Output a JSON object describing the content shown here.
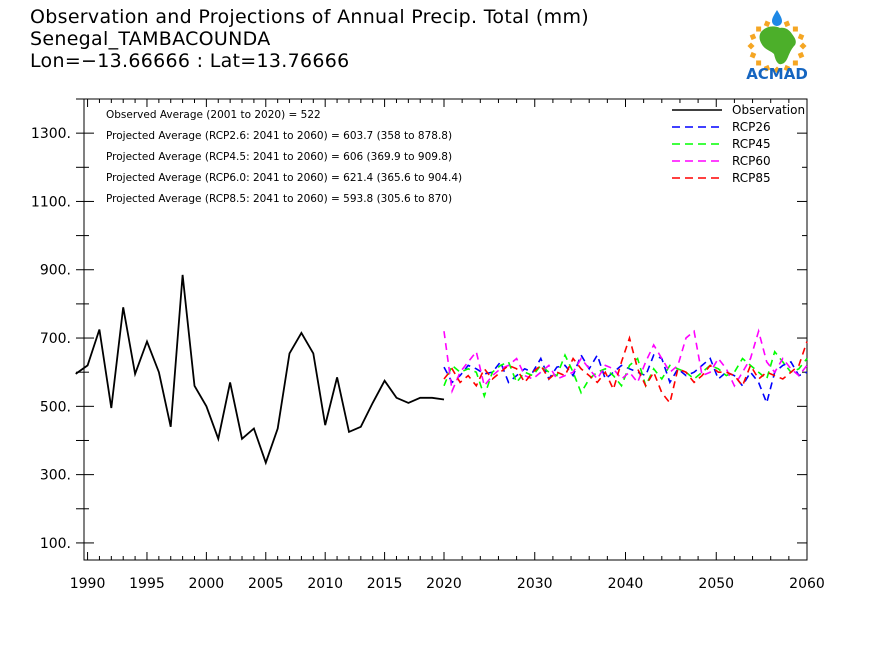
{
  "header": {
    "title": "Observation and Projections of Annual Precip. Total (mm)",
    "location": "Senegal_TAMBACOUNDA",
    "coords": "Lon=−13.66666 : Lat=13.76666"
  },
  "logo": {
    "text": "ACMAD",
    "continent_color": "#4caf2a",
    "ring_color": "#f5a623",
    "drop_color": "#1e88e5",
    "text_color": "#1565c0"
  },
  "chart_data": {
    "type": "line",
    "xlim": [
      1990,
      2060
    ],
    "ylim": [
      50,
      1400
    ],
    "y_ticks": [
      "100.",
      "300.",
      "500.",
      "700.",
      "900.",
      "1100.",
      "1300."
    ],
    "y_tick_values": [
      100,
      300,
      500,
      700,
      900,
      1100,
      1300
    ],
    "x_ticks_pre": [
      "1990",
      "1995",
      "2000",
      "2005",
      "2010",
      "2015",
      "2020"
    ],
    "x_tick_values_pre": [
      1990,
      1995,
      2000,
      2005,
      2010,
      2015,
      2020
    ],
    "x_ticks_post": [
      "2030",
      "2040",
      "2050",
      "2060"
    ],
    "x_tick_values_post": [
      2030,
      2040,
      2050,
      2060
    ],
    "annotations": [
      "Observed Average (2001 to 2020) = 522",
      "Projected Average (RCP2.6: 2041 to 2060) = 603.7 (358 to 878.8)",
      "Projected Average (RCP4.5: 2041 to 2060) = 606 (369.9 to 909.8)",
      "Projected Average (RCP6.0: 2041 to 2060) = 621.4 (365.6 to 904.4)",
      "Projected Average (RCP8.5: 2041 to 2060) = 593.8 (305.6 to 870)"
    ],
    "legend_position": "top-right",
    "series": [
      {
        "name": "Observation",
        "color": "#000000",
        "dashed": false,
        "x": [
          1989,
          1990,
          1991,
          1992,
          1993,
          1994,
          1995,
          1996,
          1997,
          1998,
          1999,
          2000,
          2001,
          2002,
          2003,
          2004,
          2005,
          2006,
          2007,
          2008,
          2009,
          2010,
          2011,
          2012,
          2013,
          2014,
          2015,
          2016,
          2017,
          2018,
          2019,
          2020
        ],
        "values": [
          595,
          620,
          725,
          495,
          790,
          595,
          690,
          600,
          440,
          885,
          560,
          500,
          405,
          570,
          405,
          435,
          335,
          435,
          655,
          715,
          655,
          445,
          585,
          425,
          440,
          510,
          575,
          525,
          510,
          525,
          525,
          520
        ]
      },
      {
        "name": "RCP26",
        "color": "#0000ff",
        "dashed": true,
        "x_start": 2020,
        "values": [
          615,
          570,
          590,
          620,
          610,
          595,
          600,
          630,
          570,
          590,
          610,
          600,
          640,
          580,
          615,
          620,
          590,
          650,
          610,
          650,
          580,
          600,
          620,
          610,
          600,
          590,
          650,
          640,
          570,
          610,
          590,
          600,
          620,
          640,
          580,
          600,
          590,
          560,
          600,
          570,
          510,
          600,
          620,
          630,
          590,
          600
        ]
      },
      {
        "name": "RCP45",
        "color": "#00ff00",
        "dashed": true,
        "x_start": 2020,
        "values": [
          560,
          620,
          600,
          610,
          600,
          530,
          600,
          620,
          630,
          570,
          600,
          590,
          620,
          600,
          590,
          650,
          600,
          540,
          580,
          600,
          610,
          590,
          560,
          620,
          640,
          560,
          610,
          580,
          620,
          610,
          600,
          580,
          600,
          620,
          610,
          590,
          600,
          640,
          620,
          600,
          580,
          660,
          630,
          600,
          610,
          640
        ]
      },
      {
        "name": "RCP60",
        "color": "#ff00ff",
        "dashed": true,
        "x_start": 2020,
        "values": [
          720,
          545,
          600,
          630,
          660,
          560,
          590,
          610,
          620,
          640,
          590,
          580,
          600,
          620,
          580,
          590,
          600,
          640,
          610,
          580,
          620,
          610,
          580,
          600,
          570,
          630,
          680,
          640,
          600,
          620,
          700,
          720,
          590,
          600,
          640,
          610,
          560,
          600,
          640,
          720,
          630,
          600,
          640,
          610,
          590,
          620
        ]
      },
      {
        "name": "RCP85",
        "color": "#ff0000",
        "dashed": true,
        "x_start": 2020,
        "values": [
          580,
          610,
          570,
          590,
          560,
          610,
          580,
          600,
          620,
          610,
          570,
          600,
          620,
          580,
          600,
          590,
          640,
          610,
          590,
          570,
          600,
          550,
          630,
          700,
          610,
          560,
          600,
          540,
          510,
          610,
          600,
          570,
          590,
          620,
          600,
          600,
          590,
          560,
          620,
          580,
          600,
          590,
          580,
          600,
          620,
          690
        ]
      }
    ]
  }
}
